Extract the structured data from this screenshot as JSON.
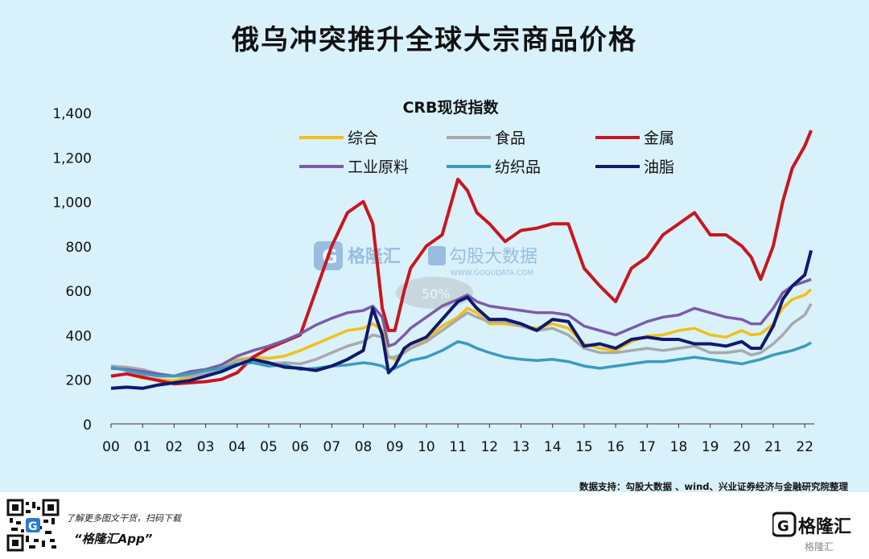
{
  "title": "俄乌冲突推升全球大宗商品价格",
  "source": "数据支持：勾股大数据 、wind、兴业证券经济与金融研究院整理",
  "promo": {
    "line1": "了解更多图文干货，扫码下载",
    "line2": "“格隆汇App”"
  },
  "brand": {
    "name": "格隆汇",
    "sub": "格隆汇"
  },
  "watermark": {
    "name": "格隆汇",
    "text": "勾股大数据",
    "url": "WWW.GOGUDATA.COM",
    "badge": "50%"
  },
  "chart_data": {
    "type": "line",
    "title": "CRB现货指数",
    "x_ticks": [
      "00",
      "01",
      "02",
      "03",
      "04",
      "05",
      "06",
      "07",
      "08",
      "09",
      "10",
      "11",
      "12",
      "13",
      "14",
      "15",
      "16",
      "17",
      "18",
      "19",
      "20",
      "21",
      "22"
    ],
    "y_ticks": [
      "0",
      "200",
      "400",
      "600",
      "800",
      "1,000",
      "1,200",
      "1,400"
    ],
    "ylim": [
      0,
      1400
    ],
    "xlim": [
      0,
      22.3
    ],
    "legend_placement": "top",
    "x": [
      0,
      0.5,
      1,
      1.5,
      2,
      2.5,
      3,
      3.5,
      4,
      4.5,
      5,
      5.5,
      6,
      6.5,
      7,
      7.5,
      8,
      8.3,
      8.6,
      8.8,
      9,
      9.3,
      9.5,
      10,
      10.5,
      11,
      11.3,
      11.6,
      12,
      12.5,
      13,
      13.5,
      14,
      14.5,
      15,
      15.5,
      16,
      16.5,
      17,
      17.5,
      18,
      18.5,
      19,
      19.5,
      20,
      20.3,
      20.6,
      21,
      21.3,
      21.6,
      22,
      22.2
    ],
    "series": [
      {
        "name": "综合",
        "color": "#f0c018",
        "values": [
          215,
          225,
          205,
          200,
          195,
          210,
          230,
          250,
          290,
          300,
          295,
          305,
          330,
          360,
          390,
          420,
          430,
          450,
          420,
          300,
          290,
          330,
          340,
          380,
          440,
          480,
          520,
          500,
          450,
          450,
          440,
          430,
          450,
          430,
          360,
          340,
          330,
          370,
          395,
          400,
          420,
          430,
          400,
          390,
          420,
          400,
          405,
          450,
          520,
          560,
          580,
          605
        ]
      },
      {
        "name": "食品",
        "color": "#a7aaaa",
        "values": [
          260,
          255,
          245,
          225,
          215,
          215,
          225,
          250,
          285,
          290,
          270,
          275,
          270,
          290,
          320,
          350,
          370,
          400,
          390,
          300,
          300,
          320,
          340,
          370,
          420,
          470,
          500,
          480,
          460,
          460,
          440,
          420,
          430,
          400,
          340,
          320,
          320,
          330,
          340,
          330,
          340,
          350,
          320,
          320,
          330,
          310,
          320,
          360,
          400,
          450,
          490,
          540
        ]
      },
      {
        "name": "金属",
        "color": "#c9161e",
        "values": [
          215,
          225,
          210,
          195,
          180,
          185,
          190,
          200,
          230,
          300,
          340,
          370,
          400,
          600,
          800,
          950,
          1000,
          900,
          520,
          420,
          420,
          600,
          700,
          800,
          850,
          1100,
          1050,
          950,
          900,
          820,
          870,
          880,
          900,
          900,
          700,
          620,
          550,
          700,
          750,
          850,
          900,
          950,
          850,
          850,
          800,
          750,
          650,
          800,
          1000,
          1150,
          1250,
          1320
        ]
      },
      {
        "name": "工业原料",
        "color": "#7a5ca8",
        "values": [
          250,
          245,
          235,
          225,
          215,
          235,
          245,
          265,
          305,
          330,
          350,
          375,
          405,
          445,
          475,
          500,
          510,
          530,
          480,
          350,
          360,
          400,
          430,
          480,
          530,
          560,
          580,
          550,
          530,
          520,
          510,
          500,
          500,
          490,
          440,
          420,
          400,
          430,
          460,
          480,
          490,
          520,
          500,
          480,
          470,
          450,
          450,
          520,
          590,
          620,
          640,
          650
        ]
      },
      {
        "name": "纺织品",
        "color": "#3a9bbf",
        "values": [
          255,
          240,
          225,
          215,
          215,
          225,
          240,
          250,
          270,
          275,
          260,
          265,
          245,
          250,
          260,
          265,
          275,
          270,
          260,
          240,
          250,
          270,
          285,
          300,
          330,
          370,
          360,
          340,
          320,
          300,
          290,
          285,
          290,
          280,
          260,
          250,
          260,
          270,
          280,
          280,
          290,
          300,
          290,
          280,
          270,
          280,
          290,
          310,
          320,
          330,
          350,
          365
        ]
      },
      {
        "name": "油脂",
        "color": "#101870",
        "values": [
          160,
          165,
          160,
          175,
          185,
          195,
          215,
          235,
          265,
          290,
          275,
          255,
          250,
          240,
          260,
          290,
          330,
          520,
          400,
          230,
          260,
          340,
          360,
          390,
          470,
          550,
          570,
          520,
          470,
          470,
          450,
          420,
          470,
          460,
          350,
          360,
          340,
          380,
          390,
          380,
          380,
          360,
          360,
          350,
          370,
          340,
          340,
          440,
          560,
          620,
          670,
          780
        ]
      }
    ]
  }
}
